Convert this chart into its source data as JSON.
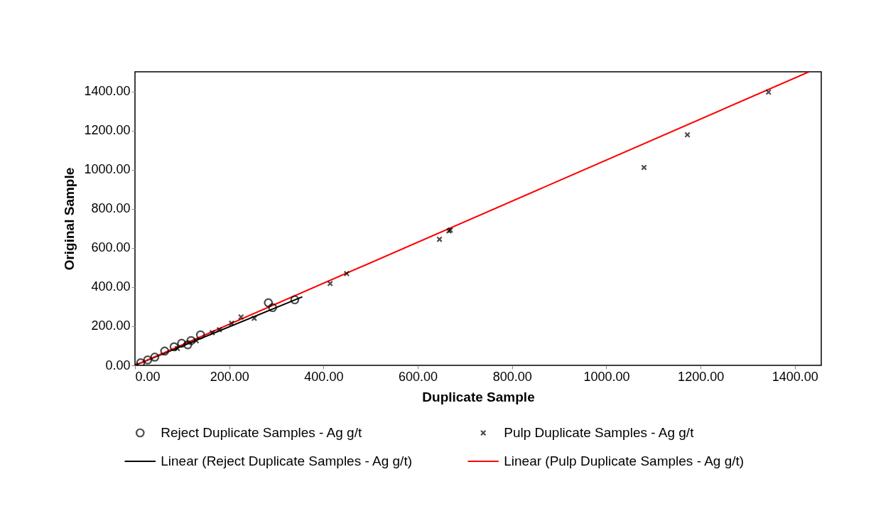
{
  "chart_data": {
    "type": "scatter",
    "xlabel": "Duplicate Sample",
    "ylabel": "Original Sample",
    "xlim": [
      0,
      1456
    ],
    "ylim": [
      0,
      1500
    ],
    "xticks": [
      {
        "value": 0,
        "label": "0.00"
      },
      {
        "value": 200,
        "label": "200.00"
      },
      {
        "value": 400,
        "label": "400.00"
      },
      {
        "value": 600,
        "label": "600.00"
      },
      {
        "value": 800,
        "label": "800.00"
      },
      {
        "value": 1000,
        "label": "1000.00"
      },
      {
        "value": 1200,
        "label": "1200.00"
      },
      {
        "value": 1400,
        "label": "1400.00"
      }
    ],
    "yticks": [
      {
        "value": 0,
        "label": "0.00"
      },
      {
        "value": 200,
        "label": "200.00"
      },
      {
        "value": 400,
        "label": "400.00"
      },
      {
        "value": 600,
        "label": "600.00"
      },
      {
        "value": 800,
        "label": "800.00"
      },
      {
        "value": 1000,
        "label": "1000.00"
      },
      {
        "value": 1200,
        "label": "1200.00"
      },
      {
        "value": 1400,
        "label": "1400.00"
      }
    ],
    "grid": false,
    "legend": "bottom",
    "series": [
      {
        "name": "Reject Duplicate Samples - Ag g/t",
        "type": "scatter",
        "marker": "circle",
        "color": "#000000",
        "x": [
          12,
          27,
          42,
          63,
          83,
          99,
          112,
          119,
          139,
          283,
          292,
          339
        ],
        "values": [
          13,
          28,
          42,
          73,
          95,
          113,
          105,
          127,
          156,
          320,
          295,
          335
        ]
      },
      {
        "name": "Pulp Duplicate Samples - Ag g/t",
        "type": "scatter",
        "marker": "cross",
        "color": "#000000",
        "x": [
          2,
          90,
          130,
          164,
          179,
          205,
          225,
          253,
          414,
          449,
          646,
          666,
          669,
          1080,
          1172,
          1344
        ],
        "values": [
          1,
          86,
          126,
          167,
          182,
          215,
          247,
          240,
          418,
          469,
          644,
          687,
          691,
          1011,
          1178,
          1396
        ]
      },
      {
        "name": "Linear (Reject Duplicate Samples - Ag g/t)",
        "type": "line",
        "marker": "none",
        "color": "#000000",
        "x": [
          0,
          355
        ],
        "values": [
          0,
          350
        ]
      },
      {
        "name": "Linear (Pulp Duplicate Samples - Ag g/t)",
        "type": "line",
        "marker": "none",
        "color": "#ff0000",
        "x": [
          0,
          1430
        ],
        "values": [
          0,
          1500
        ]
      }
    ]
  }
}
